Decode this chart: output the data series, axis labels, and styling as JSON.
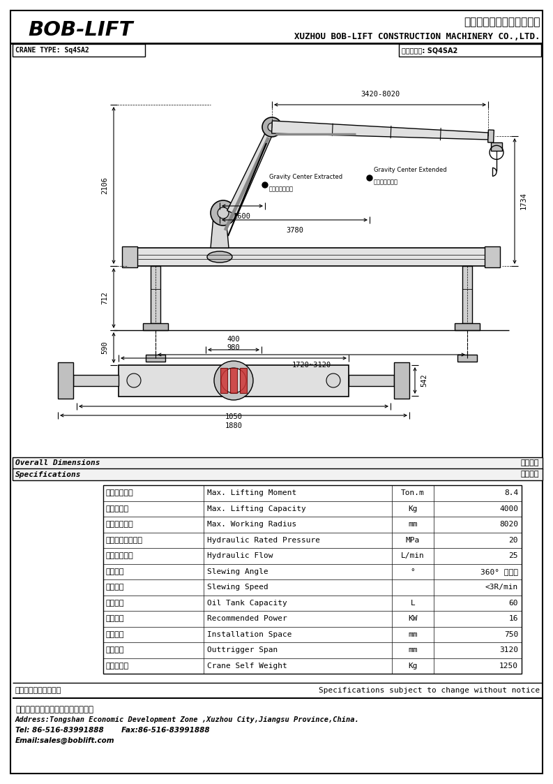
{
  "page_bg": "#ffffff",
  "col": "#000000",
  "title_company_cn": "徐州巴布工程机械有限公司",
  "title_company_en": "XUZHOU BOB-LIFT CONSTRUCTION MACHINERY CO.,LTD.",
  "title_brand": "BOB-LIFT",
  "crane_type_label": "CRANE TYPE: Sq4SA2",
  "crane_model_label": "起重机型号: SQ4SA2",
  "overall_dim_en": "Overall Dimensions",
  "overall_dim_cn": "外形尺寸",
  "spec_en": "Specifications",
  "spec_cn": "技术参数",
  "notice_cn": "技术更改恕不另行通知",
  "notice_en": "Specifications subject to change without notice",
  "address_cn": "地址：江苏省徐州市铜山庙府开发区",
  "address_en": "Address:Tongshan Economic Development Zone ,Xuzhou City,Jiangsu Province,China.",
  "tel": "Tel: 86-516-83991888",
  "fax": "Fax:86-516-83991888",
  "email": "Email:sales@boblift.com",
  "specs": [
    [
      "最大起重力矩",
      "Max. Lifting Moment",
      "Ton.m",
      "8.4"
    ],
    [
      "最大起重量",
      "Max. Lifting Capacity",
      "Kg",
      "4000"
    ],
    [
      "最大工作半径",
      "Max. Working Radius",
      "mm",
      "8020"
    ],
    [
      "液压系统额定压力",
      "Hydraulic Rated Pressure",
      "MPa",
      "20"
    ],
    [
      "液压系统流量",
      "Hydraulic Flow",
      "L/min",
      "25"
    ],
    [
      "回转角度",
      "Slewing Angle",
      "°",
      "360° 全回转"
    ],
    [
      "回转速度",
      "Slewing Speed",
      "",
      "<3R/min"
    ],
    [
      "油箱容积",
      "Oil Tank Capacity",
      "L",
      "60"
    ],
    [
      "推荐功率",
      "Recommended Power",
      "KW",
      "16"
    ],
    [
      "安装空间",
      "Installation Space",
      "mm",
      "750"
    ],
    [
      "支腿跨距",
      "Outtrigger Span",
      "mm",
      "3120"
    ],
    [
      "起重机自重",
      "Crane Self Weight",
      "Kg",
      "1250"
    ]
  ],
  "dim_3420_8020": "3420-8020",
  "dim_2106": "2106",
  "dim_1734": "1734",
  "dim_1600": "1600",
  "dim_3780": "3780",
  "dim_712": "712",
  "dim_590": "590",
  "dim_1720_3120": "1720~3120",
  "dim_980": "980",
  "dim_400": "400",
  "dim_1050": "1050",
  "dim_1880": "1880",
  "dim_542": "542",
  "gc1_en": "Gravity Center Extracted",
  "gc1_cn": "全缩回重心位置",
  "gc2_en": "Gravity Center Extended",
  "gc2_cn": "全伸出重心位置"
}
